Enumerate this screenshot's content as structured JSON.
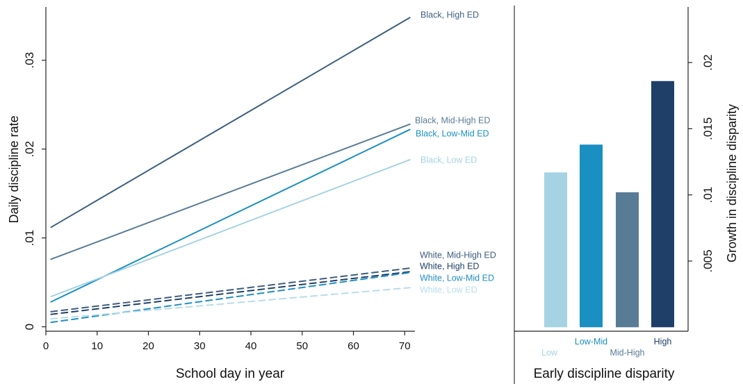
{
  "colors": {
    "black_high": "#3e5f80",
    "black_midhigh": "#587c96",
    "black_lowmid": "#1a8fc2",
    "black_low": "#a6d3e3",
    "white_midhigh": "#3d5c80",
    "white_high": "#1f3f68",
    "white_lowmid": "#1e8fc3",
    "white_low": "#b8dcec",
    "axis": "#222222"
  },
  "chart_data": [
    {
      "type": "line",
      "xlabel": "School day in year",
      "ylabel": "Daily discipline rate",
      "xlim": [
        0,
        72
      ],
      "ylim": [
        -0.0005,
        0.036
      ],
      "xticks": [
        0,
        10,
        20,
        30,
        40,
        50,
        60,
        70
      ],
      "xtick_labels": [
        "0",
        "10",
        "20",
        "30",
        "40",
        "50",
        "60",
        "70"
      ],
      "yticks": [
        0,
        0.01,
        0.02,
        0.03
      ],
      "ytick_labels": [
        "0",
        ".01",
        ".02",
        ".03"
      ],
      "grid": false,
      "series": [
        {
          "name": "Black, High ED",
          "x": [
            1,
            71
          ],
          "y": [
            0.0112,
            0.0348
          ],
          "style": "solid",
          "color_key": "black_high"
        },
        {
          "name": "Black, Mid-High ED",
          "x": [
            1,
            71
          ],
          "y": [
            0.0076,
            0.0228
          ],
          "style": "solid",
          "color_key": "black_midhigh"
        },
        {
          "name": "Black, Low-Mid ED",
          "x": [
            1,
            71
          ],
          "y": [
            0.0028,
            0.0222
          ],
          "style": "solid",
          "color_key": "black_lowmid"
        },
        {
          "name": "Black, Low ED",
          "x": [
            1,
            71
          ],
          "y": [
            0.0034,
            0.0188
          ],
          "style": "solid",
          "color_key": "black_low"
        },
        {
          "name": "White, Mid-High ED",
          "x": [
            1,
            71
          ],
          "y": [
            0.0017,
            0.0066
          ],
          "style": "dashed",
          "color_key": "white_midhigh"
        },
        {
          "name": "White, High ED",
          "x": [
            1,
            71
          ],
          "y": [
            0.0014,
            0.0062
          ],
          "style": "dashed",
          "color_key": "white_high"
        },
        {
          "name": "White, Low-Mid ED",
          "x": [
            1,
            71
          ],
          "y": [
            0.0005,
            0.0061
          ],
          "style": "dashed",
          "color_key": "white_lowmid"
        },
        {
          "name": "White, Low ED",
          "x": [
            1,
            71
          ],
          "y": [
            0.0009,
            0.0044
          ],
          "style": "dashed",
          "color_key": "white_low"
        }
      ]
    },
    {
      "type": "bar",
      "xlabel": "Early discipline disparity",
      "ylabel": "Growth in discipline disparity",
      "ylim": [
        -0.0003,
        0.0242
      ],
      "yticks": [
        0.005,
        0.01,
        0.015,
        0.02
      ],
      "ytick_labels": [
        ".005",
        ".01",
        ".015",
        ".02"
      ],
      "categories": [
        "Low",
        "Low-Mid",
        "Mid-High",
        "High"
      ],
      "values": [
        0.0117,
        0.0138,
        0.0102,
        0.0186
      ],
      "bar_color_keys": [
        "black_low",
        "black_lowmid",
        "black_midhigh",
        "white_high"
      ],
      "grid": false
    }
  ]
}
